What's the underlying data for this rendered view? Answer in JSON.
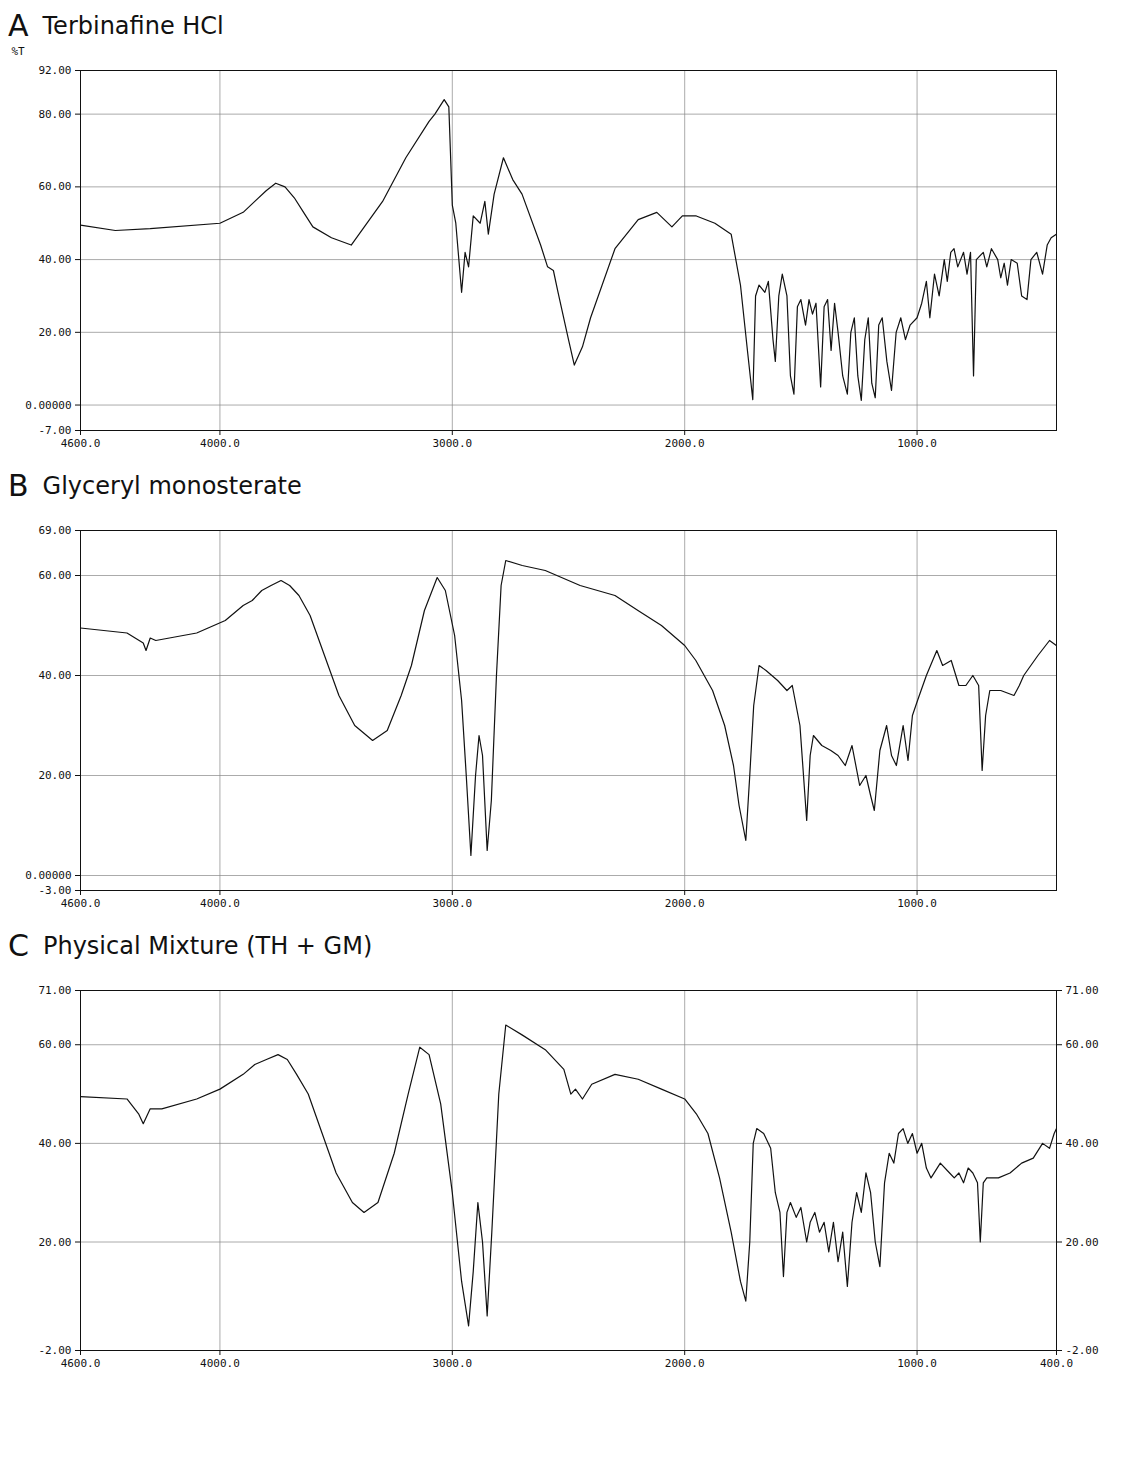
{
  "chart_data": [
    {
      "type": "line",
      "panel": "A",
      "title": "Terbinafine HCl",
      "ylabel": "%T",
      "color": "#111111",
      "grid": true,
      "xlim": [
        4600,
        400
      ],
      "xticks": [
        {
          "value": 4600,
          "label": "4600.0"
        },
        {
          "value": 4000,
          "label": "4000.0"
        },
        {
          "value": 3000,
          "label": "3000.0"
        },
        {
          "value": 2000,
          "label": "2000.0"
        },
        {
          "value": 1000,
          "label": "1000.0"
        }
      ],
      "ylim": [
        -7,
        92
      ],
      "yticks": [
        {
          "value": 92,
          "label": "92.00"
        },
        {
          "value": 80,
          "label": "80.00"
        },
        {
          "value": 60,
          "label": "60.00"
        },
        {
          "value": 40,
          "label": "40.00"
        },
        {
          "value": 20,
          "label": "20.00"
        },
        {
          "value": 0,
          "label": "0.00000"
        },
        {
          "value": -7,
          "label": "-7.00"
        }
      ],
      "x": [
        4600,
        4450,
        4300,
        4000,
        3900,
        3850,
        3800,
        3760,
        3720,
        3680,
        3640,
        3600,
        3520,
        3435,
        3300,
        3200,
        3100,
        3075,
        3035,
        3015,
        3000,
        2985,
        2960,
        2945,
        2930,
        2910,
        2880,
        2860,
        2845,
        2820,
        2780,
        2740,
        2700,
        2620,
        2590,
        2565,
        2545,
        2500,
        2475,
        2440,
        2405,
        2300,
        2200,
        2120,
        2055,
        2010,
        1950,
        1870,
        1800,
        1760,
        1730,
        1707,
        1695,
        1680,
        1655,
        1640,
        1620,
        1610,
        1595,
        1580,
        1560,
        1545,
        1530,
        1515,
        1500,
        1480,
        1465,
        1450,
        1435,
        1415,
        1400,
        1385,
        1370,
        1355,
        1340,
        1320,
        1300,
        1285,
        1270,
        1255,
        1240,
        1225,
        1210,
        1195,
        1180,
        1165,
        1150,
        1130,
        1110,
        1090,
        1070,
        1050,
        1030,
        1000,
        980,
        960,
        945,
        925,
        905,
        883,
        870,
        855,
        841,
        825,
        800,
        785,
        770,
        757,
        745,
        715,
        700,
        680,
        653,
        640,
        625,
        611,
        595,
        569,
        550,
        527,
        510,
        485,
        460,
        440,
        423,
        400
      ],
      "values": [
        49.5,
        48,
        48.5,
        50,
        53,
        56,
        59,
        61,
        60,
        57,
        53,
        49,
        46,
        44,
        56,
        68,
        78,
        80,
        84,
        82,
        55,
        50,
        31,
        42,
        38,
        52,
        50,
        56,
        47,
        58,
        68,
        62,
        58,
        44,
        38,
        37,
        31,
        18,
        11,
        16,
        24,
        43,
        51,
        53,
        49,
        52,
        52,
        50,
        47,
        33,
        15,
        1.5,
        30,
        33,
        31,
        34,
        18,
        12,
        30,
        36,
        30,
        8,
        3,
        27,
        29,
        22,
        29,
        25,
        28,
        5,
        27,
        29,
        15,
        28,
        20,
        8,
        3,
        20,
        24,
        8,
        1.3,
        18,
        24,
        6,
        2,
        22,
        24,
        12,
        4,
        20,
        24,
        18,
        22,
        24,
        28,
        34,
        24,
        36,
        30,
        40,
        34,
        42,
        43,
        38,
        42,
        36,
        42,
        8,
        40,
        42,
        38,
        43,
        40,
        35,
        39,
        33,
        40,
        39,
        30,
        29,
        40,
        42,
        36,
        44,
        46,
        47
      ]
    },
    {
      "type": "line",
      "panel": "B",
      "title": "Glyceryl monosterate",
      "color": "#111111",
      "grid": true,
      "xlim": [
        4600,
        400
      ],
      "xticks": [
        {
          "value": 4600,
          "label": "4600.0"
        },
        {
          "value": 4000,
          "label": "4000.0"
        },
        {
          "value": 3000,
          "label": "3000.0"
        },
        {
          "value": 2000,
          "label": "2000.0"
        },
        {
          "value": 1000,
          "label": "1000.0"
        }
      ],
      "ylim": [
        -3,
        69
      ],
      "yticks": [
        {
          "value": 69,
          "label": "69.00"
        },
        {
          "value": 60,
          "label": "60.00"
        },
        {
          "value": 40,
          "label": "40.00"
        },
        {
          "value": 20,
          "label": "20.00"
        },
        {
          "value": 0,
          "label": "0.00000"
        },
        {
          "value": -3,
          "label": "-3.00"
        }
      ],
      "x": [
        4600,
        4400,
        4330,
        4318,
        4300,
        4276,
        4100,
        3977,
        3900,
        3861,
        3820,
        3780,
        3737,
        3700,
        3660,
        3612,
        3550,
        3488,
        3420,
        3343,
        3280,
        3220,
        3176,
        3120,
        3065,
        3030,
        2990,
        2960,
        2940,
        2920,
        2900,
        2885,
        2870,
        2850,
        2832,
        2810,
        2790,
        2770,
        2699,
        2600,
        2450,
        2300,
        2201,
        2100,
        2000,
        1952,
        1880,
        1828,
        1790,
        1766,
        1737,
        1720,
        1703,
        1680,
        1650,
        1600,
        1560,
        1537,
        1504,
        1475,
        1460,
        1446,
        1410,
        1371,
        1340,
        1309,
        1280,
        1247,
        1220,
        1200,
        1184,
        1160,
        1131,
        1110,
        1089,
        1060,
        1039,
        1020,
        998,
        960,
        915,
        890,
        853,
        820,
        790,
        760,
        735,
        720,
        705,
        687,
        640,
        583,
        560,
        541,
        480,
        430,
        400
      ],
      "values": [
        49.5,
        48.5,
        46.5,
        45,
        47.5,
        47,
        48.5,
        51,
        54,
        55,
        57,
        58,
        59,
        58,
        56,
        52,
        44,
        36,
        30,
        27,
        29,
        36,
        42,
        53,
        59.6,
        57,
        48,
        35,
        20,
        4,
        20,
        28,
        24,
        5,
        15,
        40,
        58,
        63,
        62,
        61,
        58,
        56,
        53,
        50,
        46,
        43,
        37,
        30,
        22,
        14,
        7,
        20,
        34,
        42,
        41,
        39,
        37,
        38,
        30,
        11,
        24,
        28,
        26,
        25,
        24,
        22,
        26,
        18,
        20,
        16,
        13,
        25,
        30,
        24,
        22,
        30,
        23,
        32,
        35,
        40,
        45,
        42,
        43,
        38,
        38,
        40,
        38,
        21,
        32,
        37,
        37,
        36,
        38,
        40,
        44,
        47,
        46
      ]
    },
    {
      "type": "line",
      "panel": "C",
      "title": "Physical Mixture (TH + GM)",
      "color": "#111111",
      "grid": true,
      "xlim": [
        4600,
        400
      ],
      "xticks": [
        {
          "value": 4600,
          "label": "4600.0"
        },
        {
          "value": 4000,
          "label": "4000.0"
        },
        {
          "value": 3000,
          "label": "3000.0"
        },
        {
          "value": 2000,
          "label": "2000.0"
        },
        {
          "value": 1000,
          "label": "1000.0"
        },
        {
          "value": 400,
          "label": "400.0"
        }
      ],
      "ylim": [
        -2,
        71
      ],
      "yticks": [
        {
          "value": 71,
          "label": "71.00"
        },
        {
          "value": 60,
          "label": "60.00"
        },
        {
          "value": 40,
          "label": "40.00"
        },
        {
          "value": 20,
          "label": "20.00"
        },
        {
          "value": -2,
          "label": "-2.00"
        }
      ],
      "y2lim": [
        -2,
        71
      ],
      "y2ticks": [
        {
          "value": 71,
          "label": "71.00"
        },
        {
          "value": 60,
          "label": "60.00"
        },
        {
          "value": 40,
          "label": "40.00"
        },
        {
          "value": 20,
          "label": "20.00"
        },
        {
          "value": -2,
          "label": "-2.00"
        }
      ],
      "x": [
        4600,
        4400,
        4350,
        4330,
        4300,
        4250,
        4100,
        4000,
        3900,
        3850,
        3800,
        3750,
        3710,
        3670,
        3620,
        3560,
        3500,
        3430,
        3380,
        3320,
        3250,
        3190,
        3140,
        3100,
        3050,
        3000,
        2960,
        2930,
        2910,
        2890,
        2870,
        2850,
        2830,
        2800,
        2770,
        2700,
        2600,
        2520,
        2490,
        2470,
        2440,
        2400,
        2300,
        2200,
        2100,
        2000,
        1950,
        1900,
        1850,
        1800,
        1760,
        1737,
        1720,
        1705,
        1690,
        1660,
        1630,
        1610,
        1590,
        1575,
        1560,
        1545,
        1520,
        1500,
        1475,
        1460,
        1440,
        1420,
        1400,
        1380,
        1360,
        1340,
        1320,
        1300,
        1280,
        1260,
        1240,
        1220,
        1200,
        1180,
        1160,
        1140,
        1120,
        1100,
        1080,
        1060,
        1040,
        1020,
        1000,
        980,
        960,
        940,
        900,
        860,
        840,
        820,
        800,
        780,
        760,
        740,
        728,
        715,
        700,
        650,
        600,
        550,
        500,
        460,
        430,
        410,
        400
      ],
      "values": [
        49.5,
        49,
        46,
        44,
        47,
        47,
        49,
        51,
        54,
        56,
        57,
        58,
        57,
        54,
        50,
        42,
        34,
        28,
        26,
        28,
        38,
        50,
        59.5,
        58,
        48,
        30,
        12,
        3,
        14,
        28,
        20,
        5,
        22,
        50,
        64,
        62,
        59,
        55,
        50,
        51,
        49,
        52,
        54,
        53,
        51,
        49,
        46,
        42,
        33,
        22,
        12,
        8,
        20,
        40,
        43,
        42,
        39,
        30,
        26,
        13,
        26,
        28,
        25,
        27,
        20,
        24,
        26,
        22,
        24,
        18,
        24,
        16,
        22,
        11,
        24,
        30,
        26,
        34,
        30,
        20,
        15,
        32,
        38,
        36,
        42,
        43,
        40,
        42,
        38,
        40,
        35,
        33,
        36,
        34,
        33,
        34,
        32,
        35,
        34,
        32,
        20,
        32,
        33,
        33,
        34,
        36,
        37,
        40,
        39,
        42,
        43
      ]
    }
  ]
}
